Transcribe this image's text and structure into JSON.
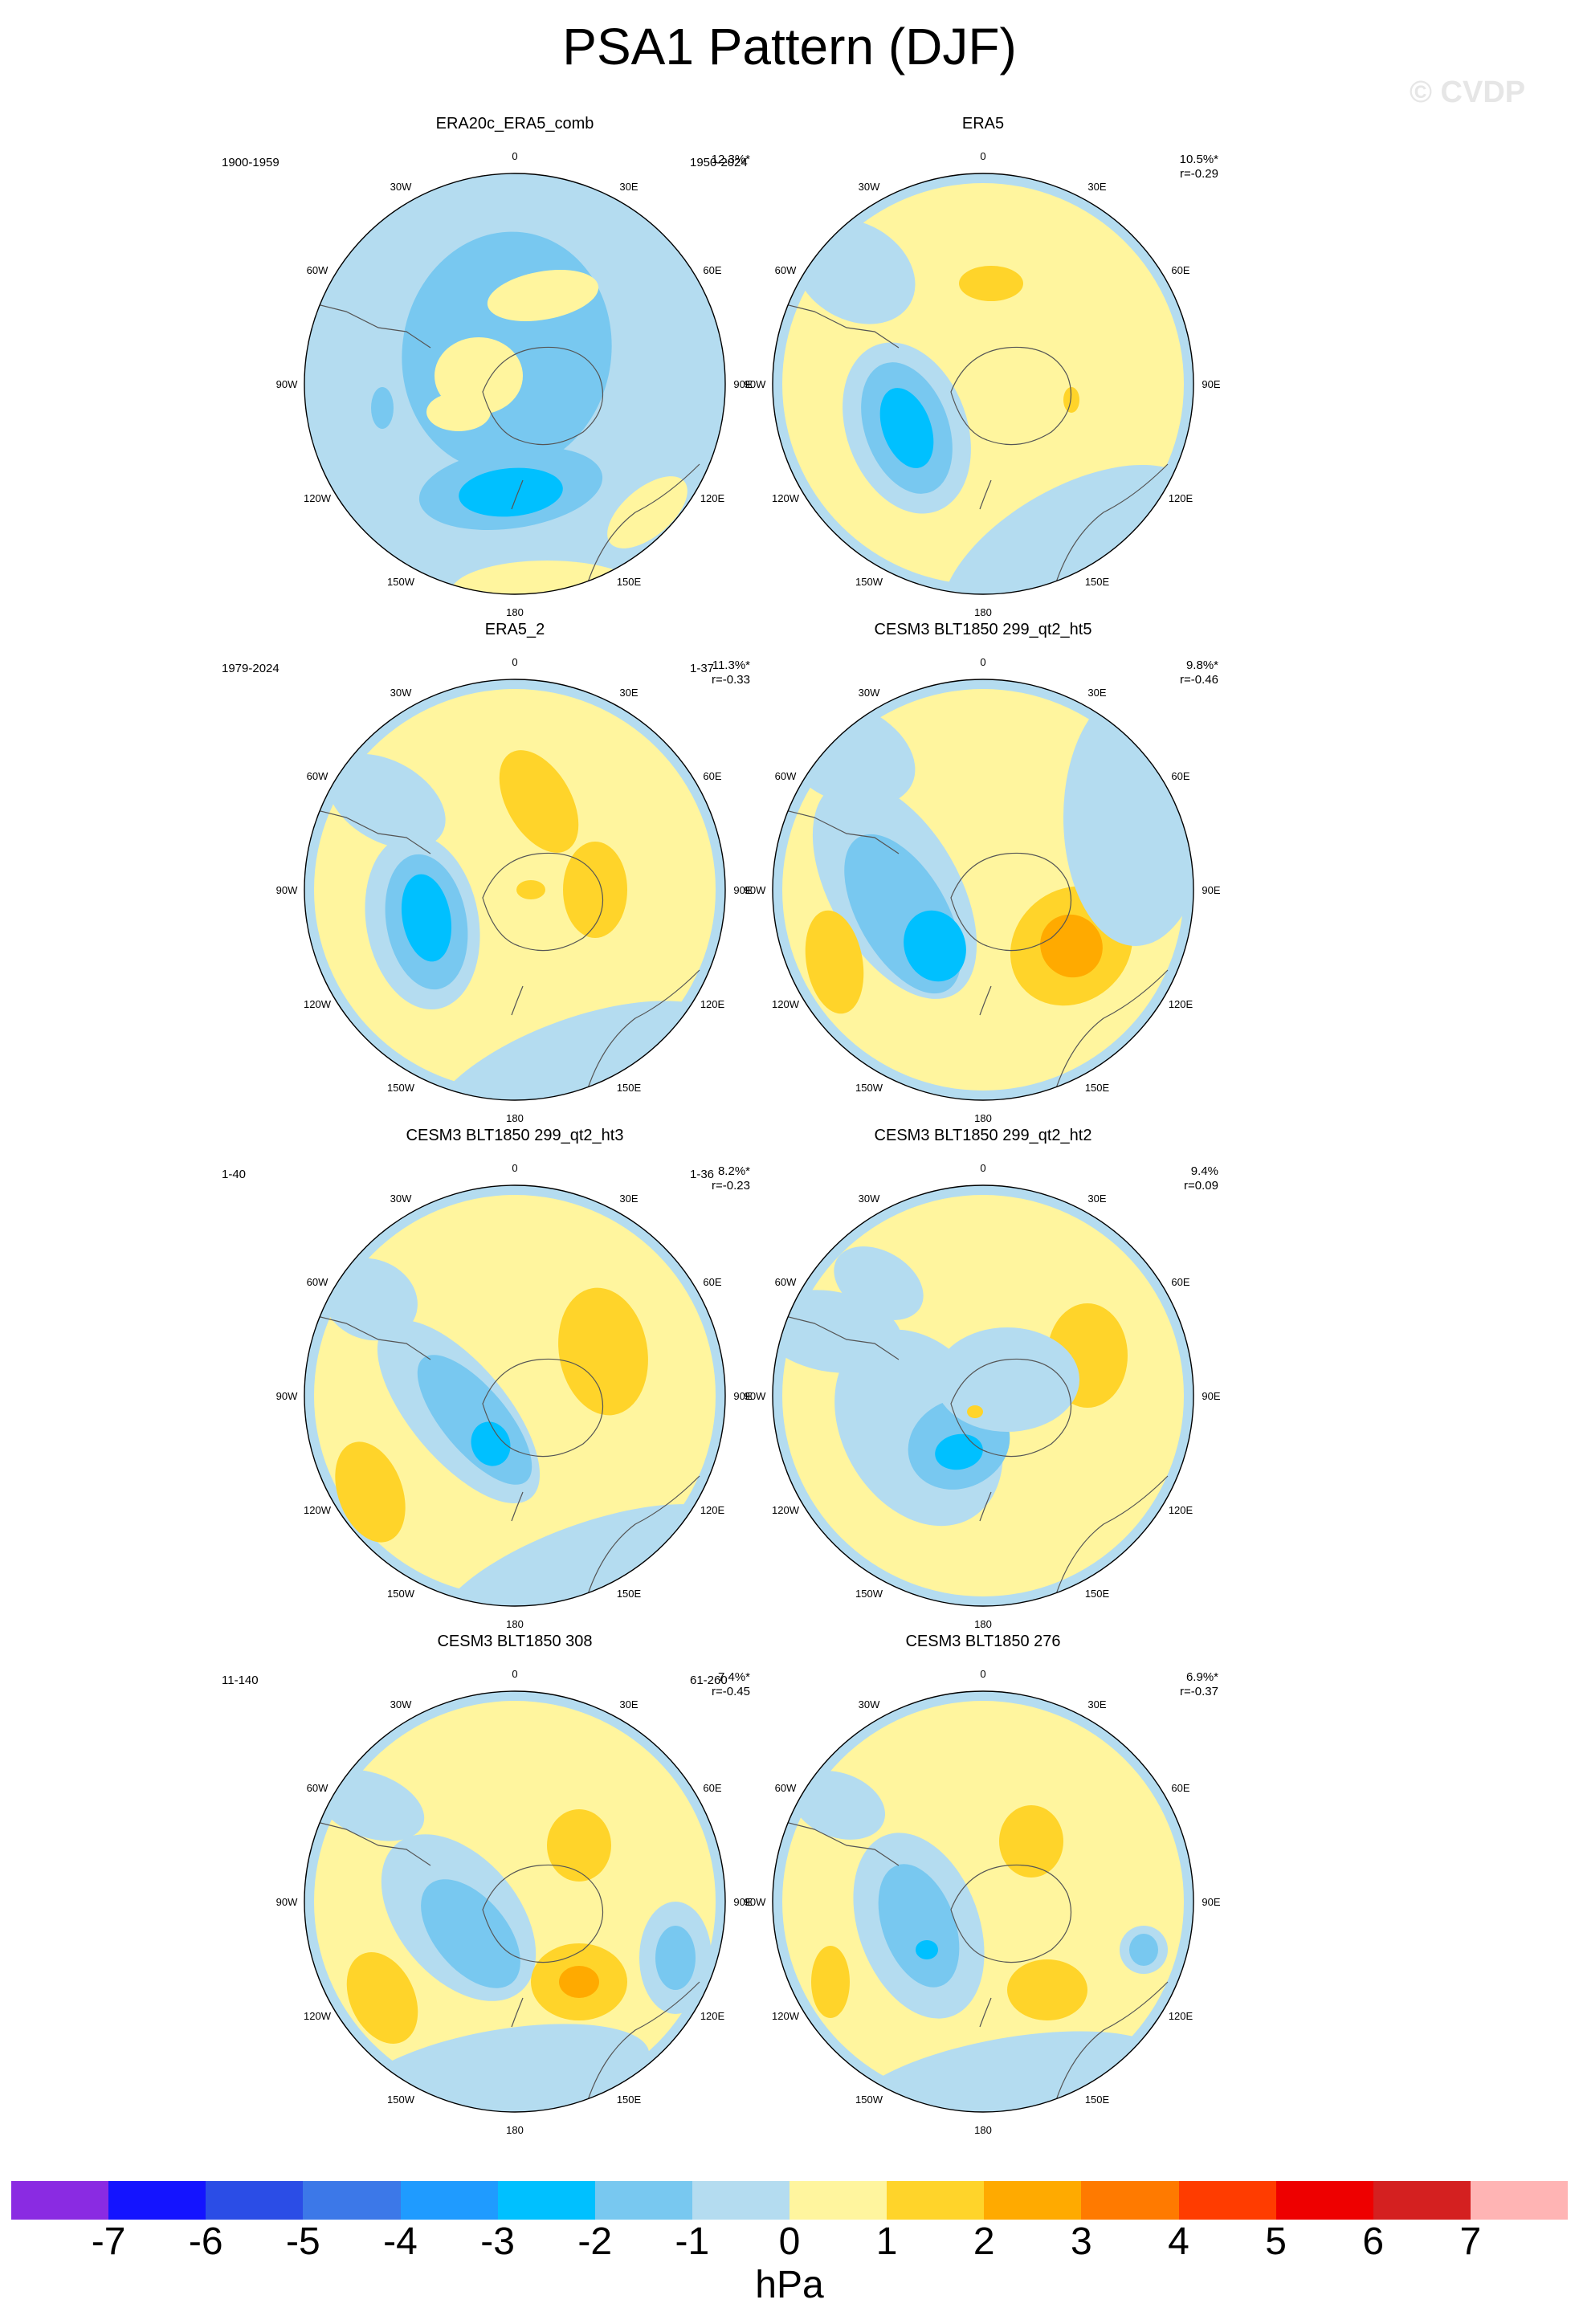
{
  "title": "PSA1 Pattern (DJF)",
  "watermark": "© CVDP",
  "panels": [
    {
      "title": "ERA20c_ERA5_comb",
      "period": "1900-1959",
      "pct": "12.3%*",
      "r": ""
    },
    {
      "title": "ERA5",
      "period": "1950-2024",
      "pct": "10.5%*",
      "r": "r=-0.29"
    },
    {
      "title": "ERA5_2",
      "period": "1979-2024",
      "pct": "11.3%*",
      "r": "r=-0.33"
    },
    {
      "title": "CESM3 BLT1850 299_qt2_ht5",
      "period": "1-37",
      "pct": "9.8%*",
      "r": "r=-0.46"
    },
    {
      "title": "CESM3 BLT1850 299_qt2_ht3",
      "period": "1-40",
      "pct": "8.2%*",
      "r": "r=-0.23"
    },
    {
      "title": "CESM3 BLT1850 299_qt2_ht2",
      "period": "1-36",
      "pct": "9.4%",
      "r": "r=0.09"
    },
    {
      "title": "CESM3 BLT1850 308",
      "period": "11-140",
      "pct": "7.4%*",
      "r": "r=-0.45"
    },
    {
      "title": "CESM3 BLT1850 276",
      "period": "61-260",
      "pct": "6.9%*",
      "r": "r=-0.37"
    }
  ],
  "longitude_labels": [
    "0",
    "30E",
    "60E",
    "90E",
    "120E",
    "150E",
    "180",
    "150W",
    "120W",
    "90W",
    "60W",
    "30W"
  ],
  "colorbar": {
    "colors": [
      "#8a2be2",
      "#1414ff",
      "#2b4de6",
      "#3c78e8",
      "#1f9bff",
      "#00c0ff",
      "#78c8f0",
      "#b4dcf0",
      "#fff59e",
      "#ffd42a",
      "#ffaa00",
      "#ff7a00",
      "#ff3c00",
      "#ee0000",
      "#d42020",
      "#ffb4b4"
    ],
    "ticks": [
      "-7",
      "-6",
      "-5",
      "-4",
      "-3",
      "-2",
      "-1",
      "0",
      "1",
      "2",
      "3",
      "4",
      "5",
      "6",
      "7"
    ],
    "units": "hPa"
  },
  "legend_colors": {
    "neg1": "#b4dcf0",
    "neg2": "#78c8f0",
    "neg3": "#00c0ff",
    "pos1": "#fff59e",
    "pos2": "#ffd42a",
    "pos3": "#ffaa00"
  }
}
